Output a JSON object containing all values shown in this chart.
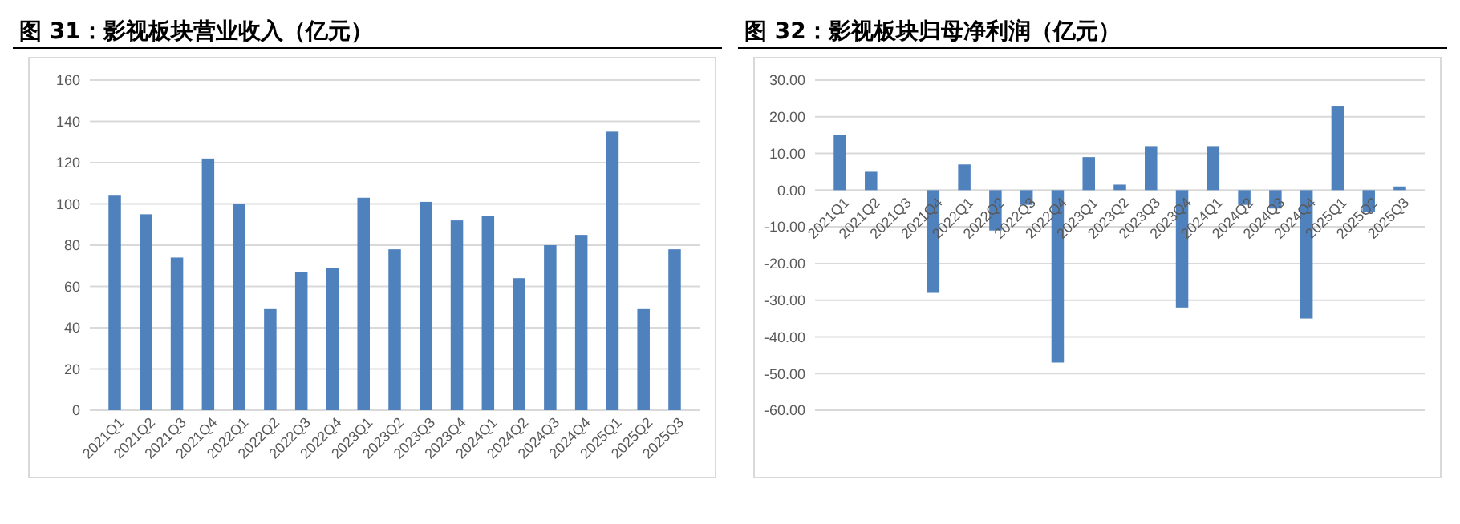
{
  "chart_data": [
    {
      "type": "bar",
      "title": "图 31：影视板块营业收入（亿元）",
      "categories": [
        "2021Q1",
        "2021Q2",
        "2021Q3",
        "2021Q4",
        "2022Q1",
        "2022Q2",
        "2022Q3",
        "2022Q4",
        "2023Q1",
        "2023Q2",
        "2023Q3",
        "2023Q4",
        "2024Q1",
        "2024Q2",
        "2024Q3",
        "2024Q4",
        "2025Q1",
        "2025Q2",
        "2025Q3"
      ],
      "series": [
        {
          "color": "#4f81bd",
          "values": [
            104,
            95,
            74,
            122,
            100,
            49,
            67,
            69,
            103,
            78,
            101,
            92,
            94,
            64,
            80,
            85,
            135,
            49,
            78
          ]
        }
      ],
      "ylim": [
        0,
        160
      ],
      "yticks": [
        0,
        20,
        40,
        60,
        80,
        100,
        120,
        140,
        160
      ],
      "grid": "y"
    },
    {
      "type": "bar",
      "title": "图 32：影视板块归母净利润（亿元）",
      "categories": [
        "2021Q1",
        "2021Q2",
        "2021Q3",
        "2021Q4",
        "2022Q1",
        "2022Q2",
        "2022Q3",
        "2022Q4",
        "2023Q1",
        "2023Q2",
        "2023Q3",
        "2023Q4",
        "2024Q1",
        "2024Q2",
        "2024Q3",
        "2024Q4",
        "2025Q1",
        "2025Q2",
        "2025Q3"
      ],
      "series": [
        {
          "color": "#4f81bd",
          "values": [
            15,
            5,
            0,
            -28,
            7,
            -11,
            -4,
            -47,
            9,
            1.5,
            12,
            -32,
            12,
            -4,
            -5,
            -35,
            23,
            -6,
            1
          ]
        }
      ],
      "ylim": [
        -60,
        30
      ],
      "yticks": [
        {
          "value": -60,
          "label": "-60.00"
        },
        {
          "value": -50,
          "label": "-50.00"
        },
        {
          "value": -40,
          "label": "-40.00"
        },
        {
          "value": -30,
          "label": "-30.00"
        },
        {
          "value": -20,
          "label": "-20.00"
        },
        {
          "value": -10,
          "label": "-10.00"
        },
        {
          "value": 0,
          "label": "0.00"
        },
        {
          "value": 10,
          "label": "10.00"
        },
        {
          "value": 20,
          "label": "20.00"
        },
        {
          "value": 30,
          "label": "30.00"
        }
      ],
      "grid": "y"
    }
  ]
}
